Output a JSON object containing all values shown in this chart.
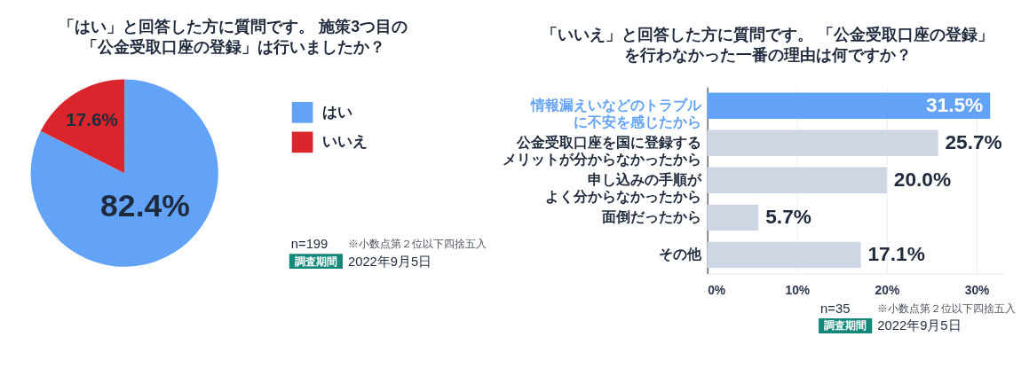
{
  "chart_data": [
    {
      "type": "pie",
      "title": "「はい」と回答した方に質問です。 施策3つ目の「公金受取口座の登録」は行いましたか？",
      "categories": [
        "はい",
        "いいえ"
      ],
      "values": [
        82.4,
        17.6
      ],
      "colors": [
        "#62a3f8",
        "#d9252b"
      ],
      "value_labels": [
        "82.4%",
        "17.6%"
      ],
      "legend": "right",
      "annotations": [
        "n=199",
        "※小数点第２位以下四捨五入",
        "調査期間",
        "2022年9月5日"
      ]
    },
    {
      "type": "bar",
      "orientation": "horizontal",
      "title": "「いいえ」と回答した方に質問です。 「公金受取口座の登録」を行わなかった一番の理由は何ですか？",
      "categories": [
        "情報漏えいなどのトラブルに不安を感じたから",
        "公金受取口座を国に登録するメリットが分からなかったから",
        "申し込みの手順がよく分からなかったから",
        "面倒だったから",
        "その他"
      ],
      "values": [
        31.5,
        25.7,
        20.0,
        5.7,
        17.1
      ],
      "colors": [
        "#62a3f8",
        "#cdd6e2",
        "#cdd6e2",
        "#cdd6e2",
        "#cdd6e2"
      ],
      "value_labels": [
        "31.5%",
        "25.7%",
        "20.0%",
        "5.7%",
        "17.1%"
      ],
      "xlim": [
        0,
        33
      ],
      "xticks": [
        {
          "value": 0,
          "label": "0%"
        },
        {
          "value": 10,
          "label": "10%"
        },
        {
          "value": 20,
          "label": "20%"
        },
        {
          "value": 30,
          "label": "30%"
        }
      ],
      "grid": "x",
      "annotations": [
        "n=35",
        "※小数点第２位以下四捨五入",
        "調査期間",
        "2022年9月5日"
      ]
    }
  ]
}
